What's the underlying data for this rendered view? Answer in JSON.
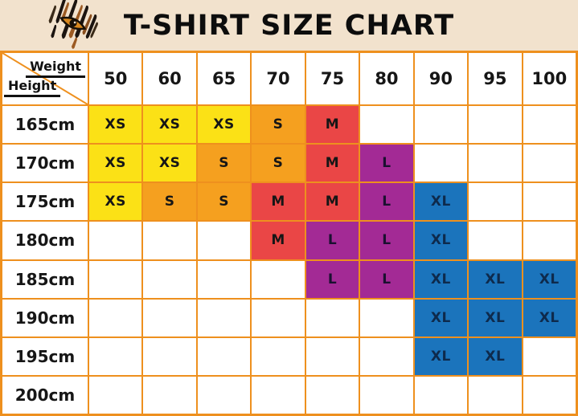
{
  "header": {
    "title": "T-SHIRT SIZE CHART",
    "logo": "tiger-eye-claw-logo"
  },
  "colors": {
    "banner_background": "#F2E2CD",
    "table_border": "#EE901E",
    "cell_background": "#FFFFFF",
    "title_text": "#0D0D0D"
  },
  "chart_data": {
    "type": "table",
    "title": "T-SHIRT SIZE CHART",
    "corner_top_label": "Weight",
    "corner_bottom_label": "Height",
    "weights": [
      "50",
      "60",
      "65",
      "70",
      "75",
      "80",
      "90",
      "95",
      "100"
    ],
    "heights": [
      "165cm",
      "170cm",
      "175cm",
      "180cm",
      "185cm",
      "190cm",
      "195cm",
      "200cm"
    ],
    "matrix": [
      [
        "XS",
        "XS",
        "XS",
        "S",
        "M",
        "",
        "",
        "",
        ""
      ],
      [
        "XS",
        "XS",
        "S",
        "S",
        "M",
        "L",
        "",
        "",
        ""
      ],
      [
        "XS",
        "S",
        "S",
        "M",
        "M",
        "L",
        "XL",
        "",
        ""
      ],
      [
        "",
        "",
        "",
        "M",
        "L",
        "L",
        "XL",
        "",
        ""
      ],
      [
        "",
        "",
        "",
        "",
        "L",
        "L",
        "XL",
        "XL",
        "XL"
      ],
      [
        "",
        "",
        "",
        "",
        "",
        "",
        "XL",
        "XL",
        "XL"
      ],
      [
        "",
        "",
        "",
        "",
        "",
        "",
        "XL",
        "XL",
        ""
      ],
      [
        "",
        "",
        "",
        "",
        "",
        "",
        "",
        "",
        ""
      ]
    ],
    "size_colors": {
      "XS": "#FBE116",
      "S": "#F5A01F",
      "M": "#EA4646",
      "L": "#A32A95",
      "XL": "#1B74BC"
    },
    "size_text_colors": {
      "XS": "#161616",
      "S": "#161616",
      "M": "#161616",
      "L": "#1A1030",
      "XL": "#0E2A4C"
    }
  }
}
